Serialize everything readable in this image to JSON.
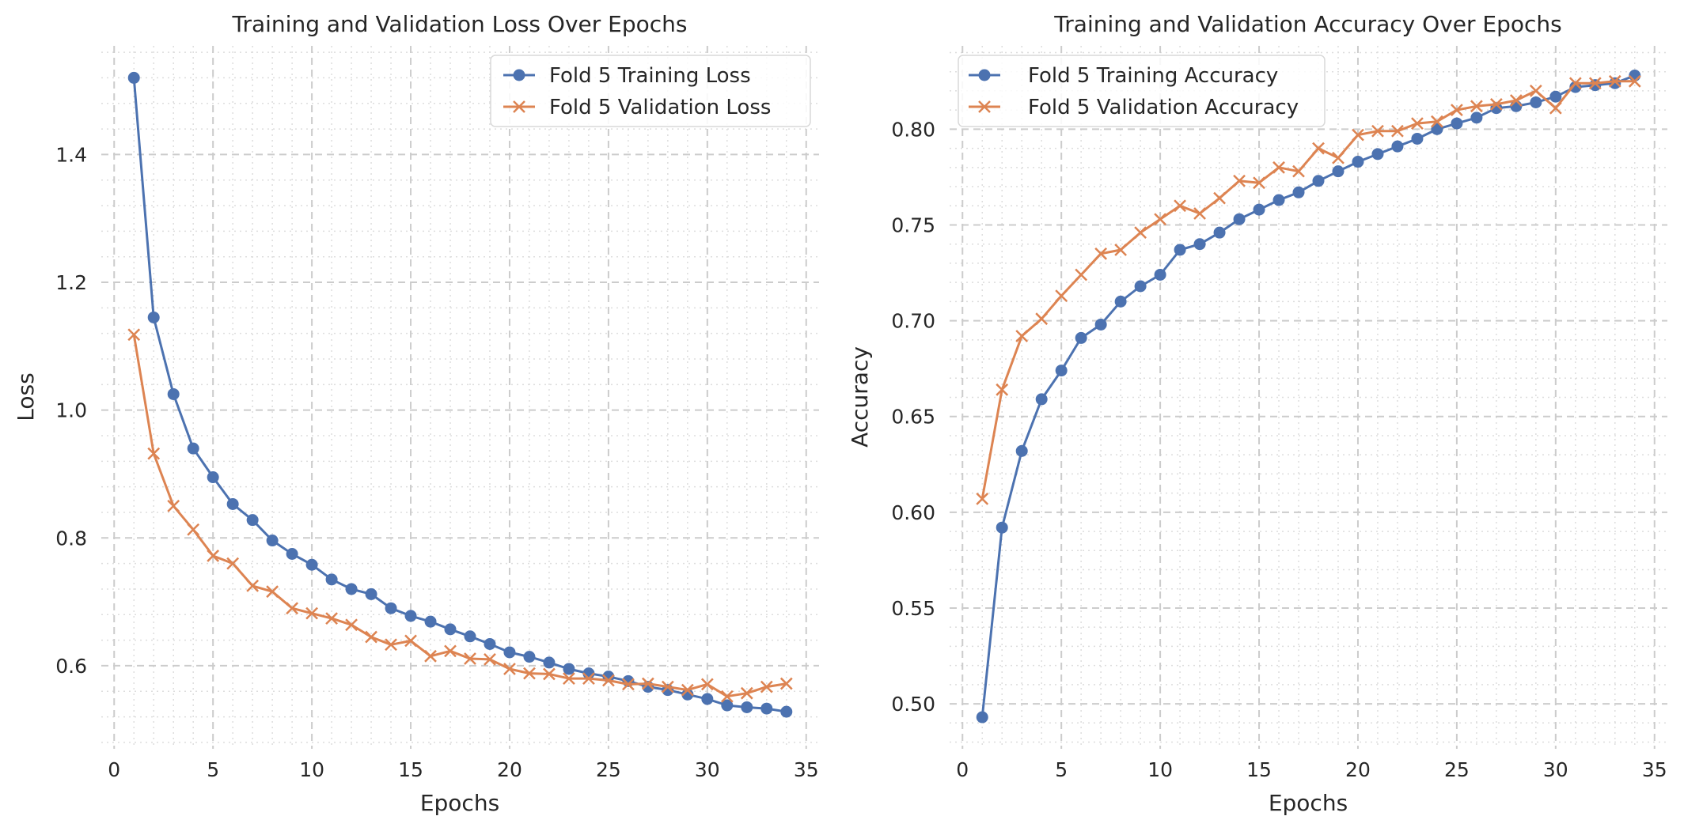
{
  "figure": {
    "colors": {
      "training": "#4c72b0",
      "validation": "#dd8452",
      "grid_major": "#cccccc",
      "grid_minor": "#dddddd"
    }
  },
  "chart_data": [
    {
      "type": "line",
      "title": "Training and Validation Loss Over Epochs",
      "xlabel": "Epochs",
      "ylabel": "Loss",
      "xlim": [
        -0.65,
        35.65
      ],
      "ylim": [
        0.47,
        1.57
      ],
      "xticks": [
        0,
        5,
        10,
        15,
        20,
        25,
        30,
        35
      ],
      "yticks": [
        0.6,
        0.8,
        1.0,
        1.2,
        1.4
      ],
      "ytick_labels": [
        "0.6",
        "0.8",
        "1.0",
        "1.2",
        "1.4"
      ],
      "grid": true,
      "legend": "upper right",
      "x": [
        1,
        2,
        3,
        4,
        5,
        6,
        7,
        8,
        9,
        10,
        11,
        12,
        13,
        14,
        15,
        16,
        17,
        18,
        19,
        20,
        21,
        22,
        23,
        24,
        25,
        26,
        27,
        28,
        29,
        30,
        31,
        32,
        33,
        34
      ],
      "series": [
        {
          "name": "Fold 5 Training Loss",
          "marker": "circle",
          "color": "#4c72b0",
          "values": [
            1.52,
            1.145,
            1.025,
            0.94,
            0.895,
            0.853,
            0.828,
            0.796,
            0.775,
            0.758,
            0.735,
            0.72,
            0.712,
            0.69,
            0.678,
            0.669,
            0.657,
            0.646,
            0.634,
            0.621,
            0.614,
            0.605,
            0.595,
            0.588,
            0.583,
            0.576,
            0.567,
            0.562,
            0.555,
            0.548,
            0.538,
            0.535,
            0.533,
            0.528
          ]
        },
        {
          "name": "Fold 5 Validation Loss",
          "marker": "x",
          "color": "#dd8452",
          "values": [
            1.118,
            0.932,
            0.85,
            0.813,
            0.772,
            0.76,
            0.725,
            0.716,
            0.69,
            0.682,
            0.674,
            0.664,
            0.645,
            0.633,
            0.639,
            0.615,
            0.623,
            0.611,
            0.61,
            0.595,
            0.588,
            0.587,
            0.58,
            0.58,
            0.577,
            0.571,
            0.572,
            0.567,
            0.562,
            0.571,
            0.552,
            0.557,
            0.567,
            0.572
          ]
        }
      ]
    },
    {
      "type": "line",
      "title": "Training and Validation Accuracy Over Epochs",
      "xlabel": "Epochs",
      "ylabel": "Accuracy",
      "xlim": [
        -0.65,
        35.65
      ],
      "ylim": [
        0.4765,
        0.8435
      ],
      "xticks": [
        0,
        5,
        10,
        15,
        20,
        25,
        30,
        35
      ],
      "yticks": [
        0.5,
        0.55,
        0.6,
        0.65,
        0.7,
        0.75,
        0.8
      ],
      "ytick_labels": [
        "0.50",
        "0.55",
        "0.60",
        "0.65",
        "0.70",
        "0.75",
        "0.80"
      ],
      "grid": true,
      "legend": "upper left",
      "x": [
        1,
        2,
        3,
        4,
        5,
        6,
        7,
        8,
        9,
        10,
        11,
        12,
        13,
        14,
        15,
        16,
        17,
        18,
        19,
        20,
        21,
        22,
        23,
        24,
        25,
        26,
        27,
        28,
        29,
        30,
        31,
        32,
        33,
        34
      ],
      "series": [
        {
          "name": "Fold 5 Training Accuracy",
          "marker": "circle",
          "color": "#4c72b0",
          "values": [
            0.493,
            0.592,
            0.632,
            0.659,
            0.674,
            0.691,
            0.698,
            0.71,
            0.718,
            0.724,
            0.737,
            0.74,
            0.746,
            0.753,
            0.758,
            0.763,
            0.767,
            0.773,
            0.778,
            0.783,
            0.787,
            0.791,
            0.795,
            0.8,
            0.803,
            0.806,
            0.811,
            0.812,
            0.814,
            0.817,
            0.822,
            0.823,
            0.824,
            0.828
          ]
        },
        {
          "name": "Fold 5 Validation Accuracy",
          "marker": "x",
          "color": "#dd8452",
          "values": [
            0.607,
            0.664,
            0.692,
            0.701,
            0.713,
            0.724,
            0.735,
            0.737,
            0.746,
            0.753,
            0.76,
            0.756,
            0.764,
            0.773,
            0.772,
            0.78,
            0.778,
            0.79,
            0.785,
            0.797,
            0.799,
            0.799,
            0.803,
            0.804,
            0.81,
            0.812,
            0.813,
            0.815,
            0.82,
            0.811,
            0.824,
            0.824,
            0.825,
            0.825
          ]
        }
      ]
    }
  ]
}
